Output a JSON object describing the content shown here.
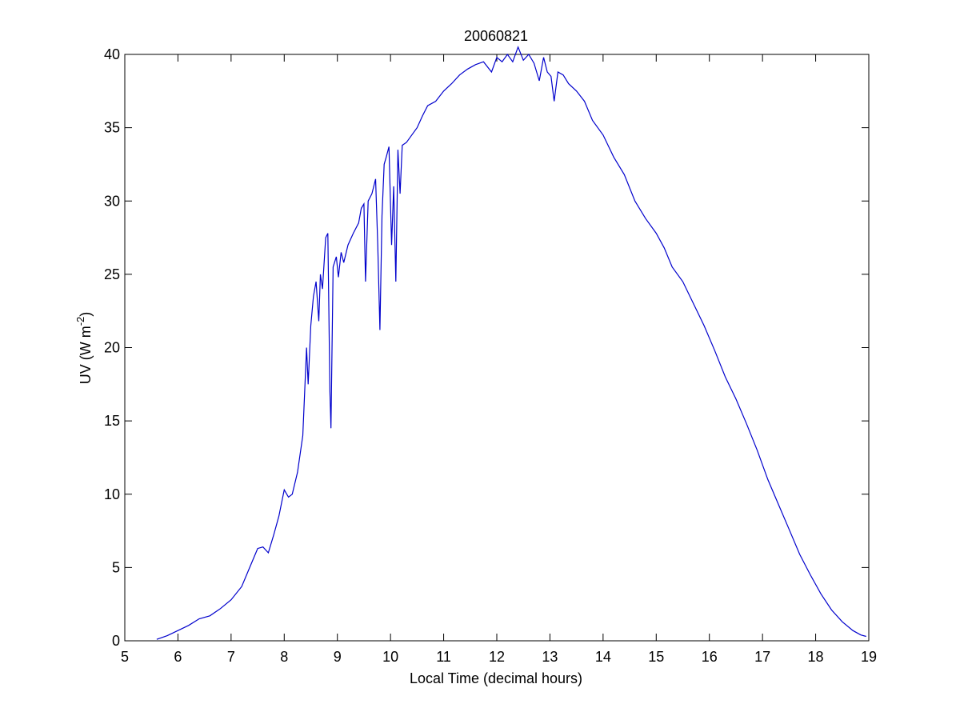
{
  "chart_data": {
    "type": "line",
    "title": "20060821",
    "xlabel": "Local Time (decimal hours)",
    "ylabel_prefix": "UV (W m",
    "ylabel_sup": "-2",
    "ylabel_suffix": ")",
    "xlim": [
      5,
      19
    ],
    "ylim": [
      0,
      40
    ],
    "xticks": [
      5,
      6,
      7,
      8,
      9,
      10,
      11,
      12,
      13,
      14,
      15,
      16,
      17,
      18,
      19
    ],
    "yticks": [
      0,
      5,
      10,
      15,
      20,
      25,
      30,
      35,
      40
    ],
    "grid": false,
    "series": [
      {
        "color": "#0000cc",
        "points": [
          [
            5.6,
            0.1
          ],
          [
            5.8,
            0.35
          ],
          [
            6.0,
            0.7
          ],
          [
            6.2,
            1.05
          ],
          [
            6.4,
            1.5
          ],
          [
            6.6,
            1.7
          ],
          [
            6.8,
            2.2
          ],
          [
            7.0,
            2.8
          ],
          [
            7.2,
            3.7
          ],
          [
            7.35,
            5.0
          ],
          [
            7.5,
            6.3
          ],
          [
            7.6,
            6.4
          ],
          [
            7.7,
            6.0
          ],
          [
            7.8,
            7.2
          ],
          [
            7.9,
            8.5
          ],
          [
            8.0,
            10.3
          ],
          [
            8.08,
            9.8
          ],
          [
            8.15,
            10.0
          ],
          [
            8.25,
            11.5
          ],
          [
            8.35,
            14.0
          ],
          [
            8.42,
            20.0
          ],
          [
            8.45,
            17.5
          ],
          [
            8.5,
            21.5
          ],
          [
            8.55,
            23.5
          ],
          [
            8.6,
            24.5
          ],
          [
            8.65,
            21.8
          ],
          [
            8.68,
            25.0
          ],
          [
            8.72,
            24.0
          ],
          [
            8.78,
            27.5
          ],
          [
            8.82,
            27.8
          ],
          [
            8.86,
            17.0
          ],
          [
            8.88,
            14.5
          ],
          [
            8.92,
            25.5
          ],
          [
            8.98,
            26.2
          ],
          [
            9.02,
            24.8
          ],
          [
            9.07,
            26.5
          ],
          [
            9.12,
            25.8
          ],
          [
            9.2,
            27.0
          ],
          [
            9.3,
            27.8
          ],
          [
            9.4,
            28.5
          ],
          [
            9.45,
            29.5
          ],
          [
            9.5,
            29.8
          ],
          [
            9.53,
            24.5
          ],
          [
            9.58,
            30.0
          ],
          [
            9.65,
            30.5
          ],
          [
            9.72,
            31.5
          ],
          [
            9.76,
            27.0
          ],
          [
            9.8,
            21.2
          ],
          [
            9.84,
            29.0
          ],
          [
            9.88,
            32.5
          ],
          [
            9.92,
            33.0
          ],
          [
            9.97,
            33.7
          ],
          [
            10.02,
            27.0
          ],
          [
            10.06,
            31.0
          ],
          [
            10.1,
            24.5
          ],
          [
            10.14,
            33.5
          ],
          [
            10.18,
            30.5
          ],
          [
            10.22,
            33.8
          ],
          [
            10.3,
            34.0
          ],
          [
            10.4,
            34.5
          ],
          [
            10.5,
            35.0
          ],
          [
            10.6,
            35.8
          ],
          [
            10.7,
            36.5
          ],
          [
            10.85,
            36.8
          ],
          [
            11.0,
            37.5
          ],
          [
            11.15,
            38.0
          ],
          [
            11.3,
            38.6
          ],
          [
            11.45,
            39.0
          ],
          [
            11.6,
            39.3
          ],
          [
            11.75,
            39.5
          ],
          [
            11.9,
            38.8
          ],
          [
            12.0,
            39.8
          ],
          [
            12.1,
            39.5
          ],
          [
            12.2,
            40.0
          ],
          [
            12.3,
            39.5
          ],
          [
            12.4,
            40.5
          ],
          [
            12.5,
            39.6
          ],
          [
            12.6,
            40.0
          ],
          [
            12.7,
            39.4
          ],
          [
            12.8,
            38.2
          ],
          [
            12.88,
            39.8
          ],
          [
            12.95,
            38.8
          ],
          [
            13.02,
            38.5
          ],
          [
            13.08,
            36.8
          ],
          [
            13.15,
            38.8
          ],
          [
            13.25,
            38.6
          ],
          [
            13.35,
            38.0
          ],
          [
            13.5,
            37.5
          ],
          [
            13.65,
            36.8
          ],
          [
            13.8,
            35.5
          ],
          [
            14.0,
            34.5
          ],
          [
            14.2,
            33.0
          ],
          [
            14.4,
            31.8
          ],
          [
            14.6,
            30.0
          ],
          [
            14.8,
            28.8
          ],
          [
            15.0,
            27.8
          ],
          [
            15.15,
            26.8
          ],
          [
            15.3,
            25.5
          ],
          [
            15.5,
            24.5
          ],
          [
            15.7,
            23.0
          ],
          [
            15.9,
            21.5
          ],
          [
            16.1,
            19.8
          ],
          [
            16.3,
            18.0
          ],
          [
            16.5,
            16.5
          ],
          [
            16.7,
            14.8
          ],
          [
            16.9,
            13.0
          ],
          [
            17.1,
            11.0
          ],
          [
            17.3,
            9.3
          ],
          [
            17.5,
            7.6
          ],
          [
            17.7,
            5.9
          ],
          [
            17.9,
            4.5
          ],
          [
            18.1,
            3.2
          ],
          [
            18.3,
            2.1
          ],
          [
            18.5,
            1.3
          ],
          [
            18.7,
            0.7
          ],
          [
            18.85,
            0.4
          ],
          [
            18.95,
            0.3
          ]
        ]
      }
    ]
  }
}
